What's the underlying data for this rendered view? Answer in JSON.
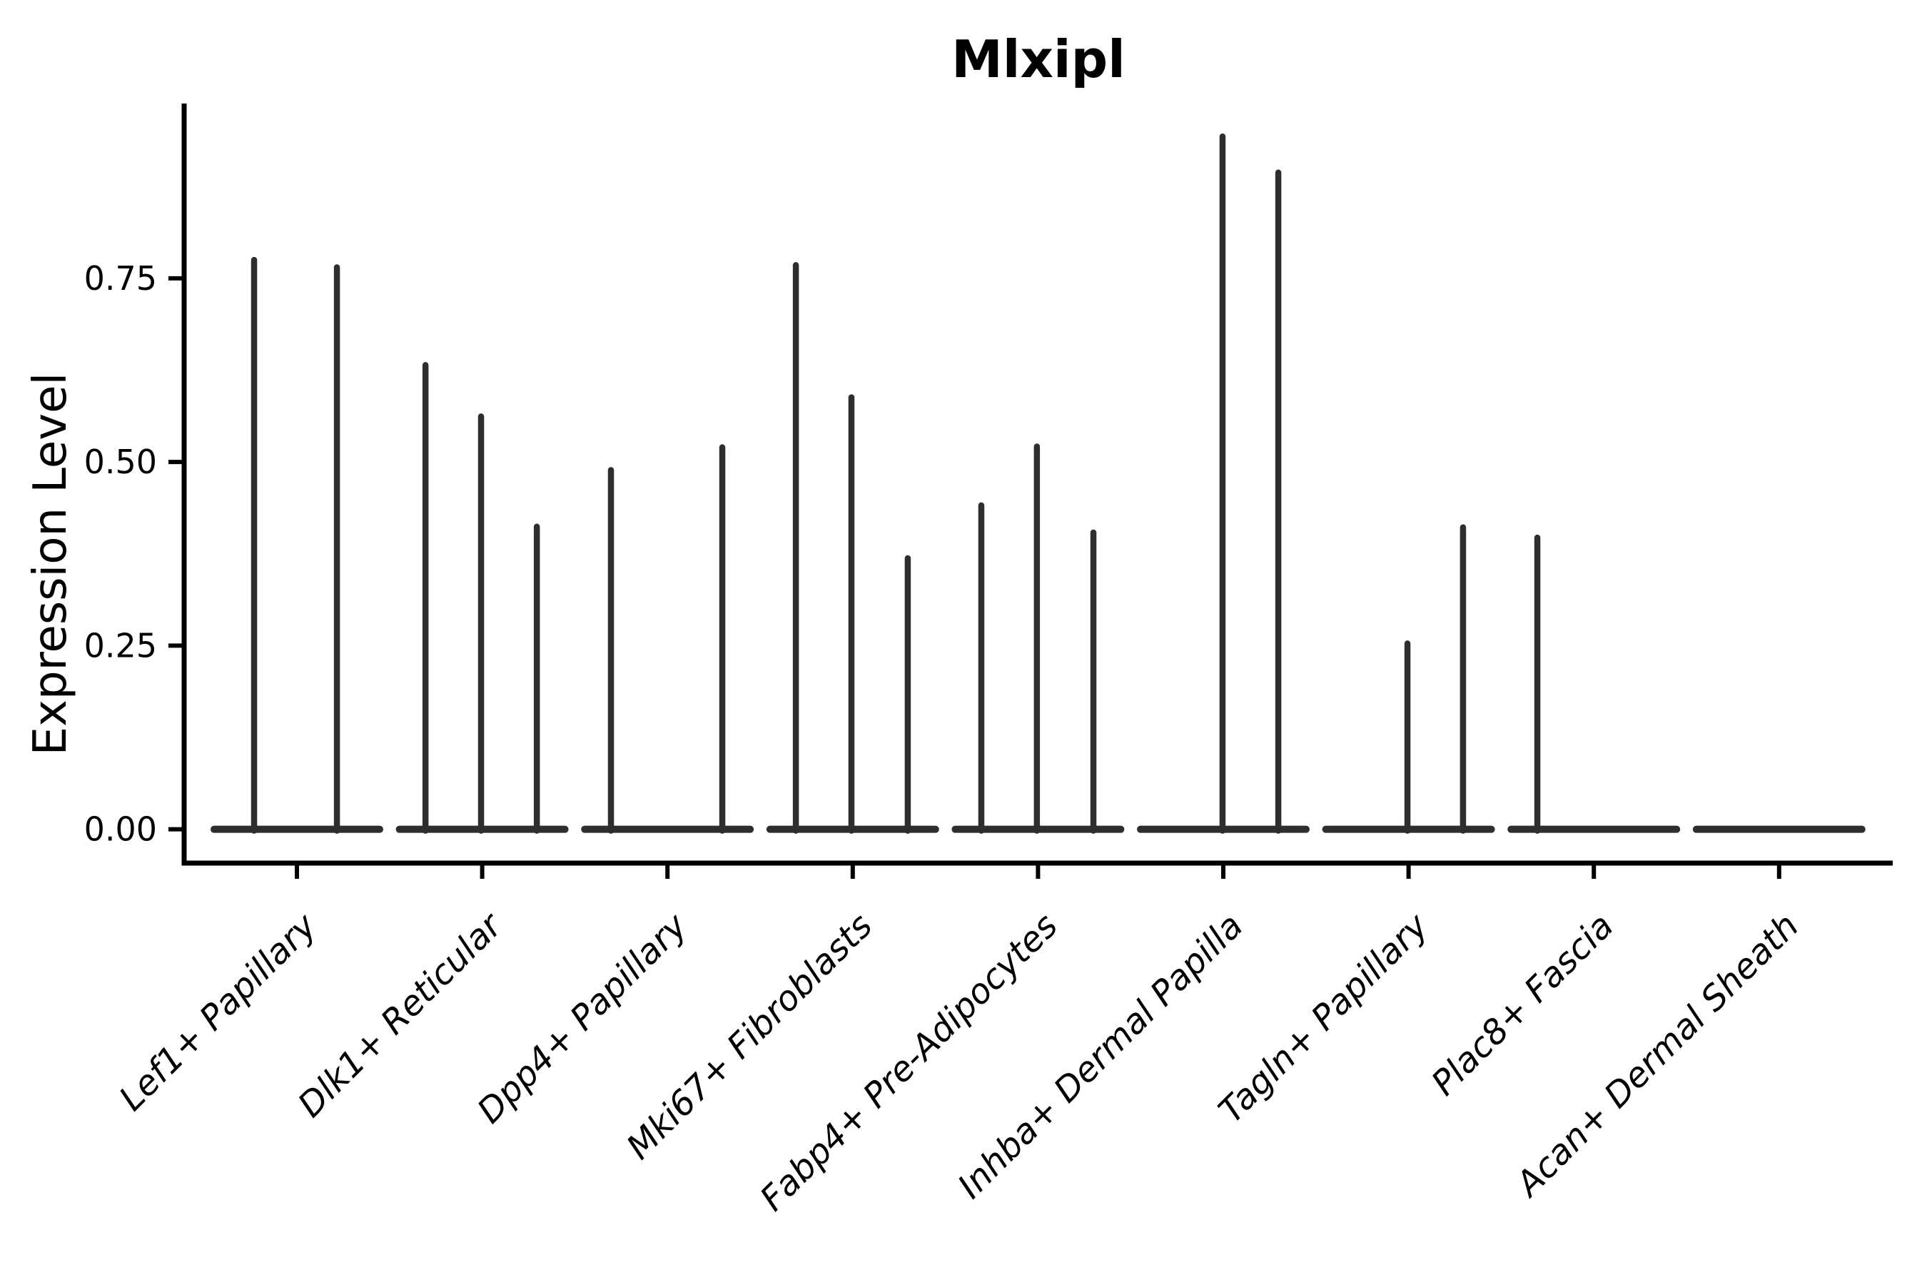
{
  "chart_data": {
    "type": "violin",
    "title": "Mlxipl",
    "ylabel": "Expression Level",
    "xlabel": "",
    "ylim": [
      -0.046,
      0.988
    ],
    "yticks": [
      {
        "value": 0.0,
        "label": "0.00"
      },
      {
        "value": 0.25,
        "label": "0.25"
      },
      {
        "value": 0.5,
        "label": "0.50"
      },
      {
        "value": 0.75,
        "label": "0.75"
      }
    ],
    "grid": false,
    "legend": "none",
    "x_label_rotation_deg": 45,
    "categories": [
      "Lef1+ Papillary",
      "Dlk1+ Reticular",
      "Dpp4+ Papillary",
      "Mki67+ Fibroblasts",
      "Fabp4+ Pre-Adipocytes",
      "Inhba+ Dermal Papilla",
      "Tagln+ Papillary",
      "Plac8+ Fascia",
      "Acan+ Dermal Sheath"
    ],
    "series": [
      {
        "name": "Lef1+ Papillary",
        "baseline_value": 0,
        "spikes": [
          {
            "dx": -0.231,
            "v": 0.775
          },
          {
            "dx": 0.216,
            "v": 0.765
          }
        ]
      },
      {
        "name": "Dlk1+ Reticular",
        "baseline_value": 0,
        "spikes": [
          {
            "dx": -0.306,
            "v": 0.632
          },
          {
            "dx": -0.006,
            "v": 0.562
          },
          {
            "dx": 0.295,
            "v": 0.412
          }
        ]
      },
      {
        "name": "Dpp4+ Papillary",
        "baseline_value": 0,
        "spikes": [
          {
            "dx": -0.305,
            "v": 0.489
          },
          {
            "dx": 0.296,
            "v": 0.52
          }
        ]
      },
      {
        "name": "Mki67+ Fibroblasts",
        "baseline_value": 0,
        "spikes": [
          {
            "dx": -0.307,
            "v": 0.768
          },
          {
            "dx": -0.007,
            "v": 0.588
          },
          {
            "dx": 0.297,
            "v": 0.369
          }
        ]
      },
      {
        "name": "Fabp4+ Pre-Adipocytes",
        "baseline_value": 0,
        "spikes": [
          {
            "dx": -0.306,
            "v": 0.441
          },
          {
            "dx": -0.006,
            "v": 0.521
          },
          {
            "dx": 0.299,
            "v": 0.404
          }
        ]
      },
      {
        "name": "Inhba+ Dermal Papilla",
        "baseline_value": 0,
        "spikes": [
          {
            "dx": -0.004,
            "v": 0.943
          },
          {
            "dx": 0.297,
            "v": 0.894
          }
        ]
      },
      {
        "name": "Tagln+ Papillary",
        "baseline_value": 0,
        "spikes": [
          {
            "dx": -0.006,
            "v": 0.253
          },
          {
            "dx": 0.294,
            "v": 0.411
          }
        ]
      },
      {
        "name": "Plac8+ Fascia",
        "baseline_value": 0,
        "spikes": [
          {
            "dx": -0.305,
            "v": 0.397
          }
        ]
      },
      {
        "name": "Acan+ Dermal Sheath",
        "baseline_value": 0,
        "spikes": []
      }
    ],
    "colors": {
      "violin": "#2e2e2e",
      "axis": "#000000",
      "text": "#000000",
      "background": "#ffffff"
    }
  }
}
